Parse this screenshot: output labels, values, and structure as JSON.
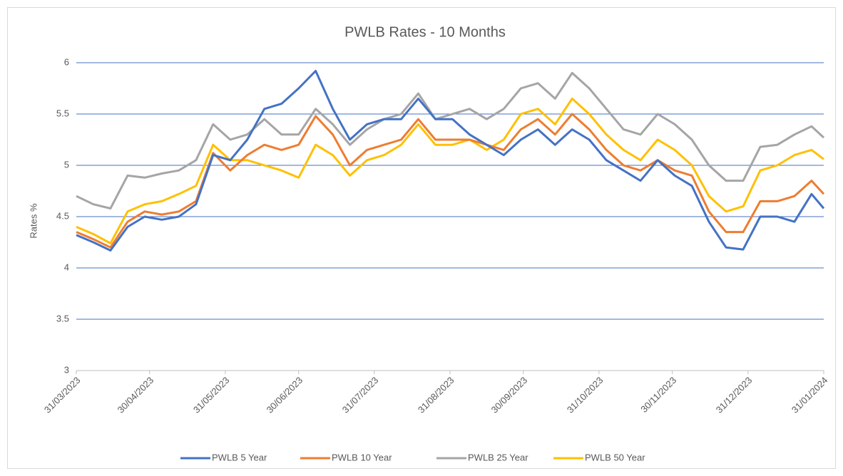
{
  "chart_data": {
    "type": "line",
    "title": "PWLB Rates - 10 Months",
    "y_label": "Rates %",
    "x": [
      "31/03/2023",
      "07/04/2023",
      "14/04/2023",
      "21/04/2023",
      "28/04/2023",
      "05/05/2023",
      "12/05/2023",
      "19/05/2023",
      "26/05/2023",
      "02/06/2023",
      "09/06/2023",
      "16/06/2023",
      "23/06/2023",
      "30/06/2023",
      "07/07/2023",
      "14/07/2023",
      "21/07/2023",
      "28/07/2023",
      "04/08/2023",
      "11/08/2023",
      "18/08/2023",
      "25/08/2023",
      "01/09/2023",
      "08/09/2023",
      "15/09/2023",
      "22/09/2023",
      "29/09/2023",
      "06/10/2023",
      "13/10/2023",
      "20/10/2023",
      "27/10/2023",
      "03/11/2023",
      "10/11/2023",
      "17/11/2023",
      "24/11/2023",
      "01/12/2023",
      "08/12/2023",
      "15/12/2023",
      "22/12/2023",
      "29/12/2023",
      "05/01/2024",
      "12/01/2024",
      "19/01/2024",
      "26/01/2024",
      "31/01/2024"
    ],
    "series": [
      {
        "name": "PWLB 5 Year",
        "color": "#4472c4",
        "values": [
          4.32,
          4.25,
          4.17,
          4.4,
          4.5,
          4.47,
          4.5,
          4.62,
          5.1,
          5.05,
          5.25,
          5.55,
          5.6,
          5.75,
          5.92,
          5.55,
          5.25,
          5.4,
          5.45,
          5.45,
          5.65,
          5.45,
          5.45,
          5.3,
          5.2,
          5.1,
          5.25,
          5.35,
          5.2,
          5.35,
          5.25,
          5.05,
          4.95,
          4.85,
          5.05,
          4.9,
          4.8,
          4.45,
          4.2,
          4.18,
          4.5,
          4.5,
          4.45,
          4.72,
          4.58
        ]
      },
      {
        "name": "PWLB 10 Year",
        "color": "#ed7d31",
        "values": [
          4.35,
          4.28,
          4.2,
          4.45,
          4.55,
          4.52,
          4.55,
          4.65,
          5.12,
          4.95,
          5.1,
          5.2,
          5.15,
          5.2,
          5.48,
          5.3,
          5.0,
          5.15,
          5.2,
          5.25,
          5.45,
          5.25,
          5.25,
          5.25,
          5.2,
          5.15,
          5.35,
          5.45,
          5.3,
          5.5,
          5.35,
          5.15,
          5.0,
          4.95,
          5.05,
          4.95,
          4.9,
          4.55,
          4.35,
          4.35,
          4.65,
          4.65,
          4.7,
          4.85,
          4.72
        ]
      },
      {
        "name": "PWLB 25 Year",
        "color": "#a5a5a5",
        "values": [
          4.7,
          4.62,
          4.58,
          4.9,
          4.88,
          4.92,
          4.95,
          5.05,
          5.4,
          5.25,
          5.3,
          5.45,
          5.3,
          5.3,
          5.55,
          5.4,
          5.2,
          5.35,
          5.45,
          5.5,
          5.7,
          5.45,
          5.5,
          5.55,
          5.45,
          5.55,
          5.75,
          5.8,
          5.65,
          5.9,
          5.75,
          5.55,
          5.35,
          5.3,
          5.5,
          5.4,
          5.25,
          5.0,
          4.85,
          4.85,
          5.18,
          5.2,
          5.3,
          5.38,
          5.27
        ]
      },
      {
        "name": "PWLB 50 Year",
        "color": "#ffc000",
        "values": [
          4.4,
          4.33,
          4.24,
          4.55,
          4.62,
          4.65,
          4.72,
          4.8,
          5.2,
          5.05,
          5.05,
          5.0,
          4.95,
          4.88,
          5.2,
          5.1,
          4.9,
          5.05,
          5.1,
          5.2,
          5.4,
          5.2,
          5.2,
          5.25,
          5.15,
          5.25,
          5.5,
          5.55,
          5.4,
          5.65,
          5.5,
          5.3,
          5.15,
          5.05,
          5.25,
          5.15,
          5.0,
          4.7,
          4.55,
          4.6,
          4.95,
          5.0,
          5.1,
          5.15,
          5.06
        ]
      }
    ],
    "xlim": [
      "31/03/2023",
      "31/01/2024"
    ],
    "xticks": [
      "31/03/2023",
      "30/04/2023",
      "31/05/2023",
      "30/06/2023",
      "31/07/2023",
      "31/08/2023",
      "30/09/2023",
      "31/10/2023",
      "30/11/2023",
      "31/12/2023",
      "31/01/2024"
    ],
    "ylim": [
      3,
      6
    ],
    "yticks": [
      3,
      3.5,
      4,
      4.5,
      5,
      5.5,
      6
    ],
    "grid": true,
    "legend": "bottom"
  }
}
